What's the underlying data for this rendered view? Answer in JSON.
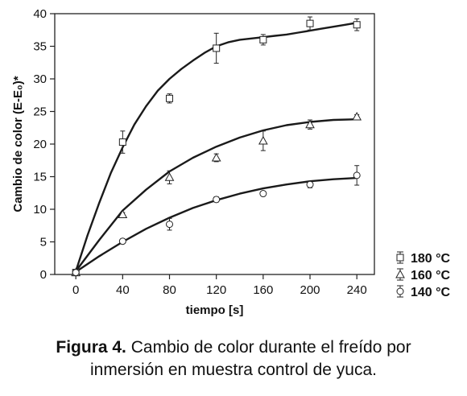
{
  "chart_data": {
    "type": "scatter",
    "ylabel": "Cambio de color (E-E₀)*",
    "xlabel": "tiempo [s]",
    "x_ticks": [
      0,
      40,
      80,
      120,
      160,
      200,
      240
    ],
    "y_ticks": [
      0,
      5,
      10,
      15,
      20,
      25,
      30,
      35,
      40
    ],
    "xlim": [
      -18,
      255
    ],
    "ylim": [
      0,
      40
    ],
    "grid": false,
    "legend_position": "bottom-right, outside plot",
    "series": [
      {
        "name": "180 °C",
        "marker": "square",
        "x": [
          0,
          40,
          80,
          120,
          160,
          200,
          240
        ],
        "y": [
          0.3,
          20.3,
          27.0,
          34.7,
          36.0,
          38.5,
          38.3
        ],
        "err": [
          0,
          1.7,
          0.7,
          2.3,
          0.8,
          1.0,
          0.9
        ],
        "fit": [
          [
            0,
            0.5
          ],
          [
            10,
            6.0
          ],
          [
            20,
            11.0
          ],
          [
            30,
            15.6
          ],
          [
            40,
            19.5
          ],
          [
            50,
            23.0
          ],
          [
            60,
            25.8
          ],
          [
            70,
            28.2
          ],
          [
            80,
            30.0
          ],
          [
            90,
            31.5
          ],
          [
            100,
            32.8
          ],
          [
            110,
            34.0
          ],
          [
            120,
            35.0
          ],
          [
            130,
            35.6
          ],
          [
            140,
            36.0
          ],
          [
            150,
            36.2
          ],
          [
            160,
            36.4
          ],
          [
            170,
            36.6
          ],
          [
            180,
            36.8
          ],
          [
            190,
            37.1
          ],
          [
            200,
            37.4
          ],
          [
            210,
            37.7
          ],
          [
            220,
            38.0
          ],
          [
            230,
            38.3
          ],
          [
            240,
            38.6
          ]
        ]
      },
      {
        "name": "160 °C",
        "marker": "triangle",
        "x": [
          0,
          40,
          80,
          120,
          160,
          200,
          240
        ],
        "y": [
          0.3,
          9.2,
          14.9,
          17.9,
          20.5,
          23.0,
          24.2
        ],
        "err": [
          0,
          0.3,
          1.0,
          0.6,
          1.5,
          0.7,
          0.3
        ],
        "fit": [
          [
            0,
            0.5
          ],
          [
            20,
            5.3
          ],
          [
            40,
            9.8
          ],
          [
            60,
            13.0
          ],
          [
            80,
            15.8
          ],
          [
            100,
            17.9
          ],
          [
            120,
            19.6
          ],
          [
            140,
            21.0
          ],
          [
            160,
            22.1
          ],
          [
            180,
            22.9
          ],
          [
            200,
            23.4
          ],
          [
            220,
            23.7
          ],
          [
            240,
            23.8
          ]
        ]
      },
      {
        "name": "140 °C",
        "marker": "circle",
        "x": [
          0,
          40,
          80,
          120,
          160,
          200,
          240
        ],
        "y": [
          0.3,
          5.1,
          7.7,
          11.5,
          12.4,
          13.8,
          15.2
        ],
        "err": [
          0,
          0,
          0.9,
          0.4,
          0.2,
          0.5,
          1.5
        ],
        "fit": [
          [
            0,
            0.4
          ],
          [
            20,
            2.8
          ],
          [
            40,
            5.0
          ],
          [
            60,
            7.0
          ],
          [
            80,
            8.7
          ],
          [
            100,
            10.2
          ],
          [
            120,
            11.4
          ],
          [
            140,
            12.4
          ],
          [
            160,
            13.2
          ],
          [
            180,
            13.8
          ],
          [
            200,
            14.3
          ],
          [
            220,
            14.6
          ],
          [
            240,
            14.8
          ]
        ]
      }
    ]
  },
  "caption": {
    "label": "Figura 4.",
    "line1": " Cambio de color durante el freído por",
    "line2": "inmersión en muestra control de yuca."
  }
}
